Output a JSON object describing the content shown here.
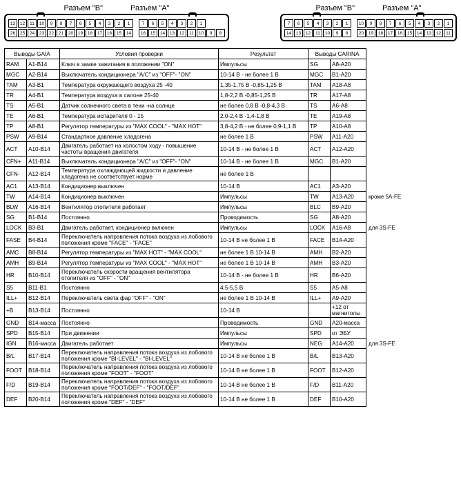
{
  "connectors": {
    "left": {
      "label_b": "Разъем \"В\"",
      "label_a": "Разъем \"А\""
    },
    "right": {
      "label_b": "Разъем \"В\"",
      "label_a": "Разъем \"А\""
    }
  },
  "headers": {
    "gaia": "Выводы GAIA",
    "cond": "Условия проверки",
    "result": "Результат",
    "carina": "Выводы CARINA"
  },
  "rows": [
    {
      "n": "RAM",
      "p": "A1-B14",
      "c": "Ключ в замке зажигания в положении \"ON\"",
      "r": "Импульсы",
      "n2": "SG",
      "p2": "A8-A20",
      "note": ""
    },
    {
      "n": "MGC",
      "p": "A2-B14",
      "c": "Выключатель кондиционера \"А/С\" из \"OFF\"- \"ON\"",
      "r": "10-14 В - не более 1 В",
      "n2": "MGC",
      "p2": "B1-A20",
      "note": ""
    },
    {
      "n": "TAM",
      "p": "A3-B1",
      "c": "Температура окружающего воздуха 25 -40",
      "r": "1,35-1,75 В -0,85-1,25 В",
      "n2": "TAM",
      "p2": "A18-A8",
      "note": ""
    },
    {
      "n": "TR",
      "p": "A4-B1",
      "c": "Температура воздуха в салоне 25-40",
      "r": "1,8-2,2 В -0,85-1,25 В",
      "n2": "TR",
      "p2": "A17-A8",
      "note": ""
    },
    {
      "n": "TS",
      "p": "A5-B1",
      "c": "Датчик солнечного света в тени -на солнце",
      "r": "не более 0,8 В -0,8-4,3 В",
      "n2": "TS",
      "p2": "A6-A8",
      "note": ""
    },
    {
      "n": "TE",
      "p": "A6-B1",
      "c": "Температура испарителя 0 - 15",
      "r": "2,0-2,4 В -1,4-1,8 В",
      "n2": "TE",
      "p2": "A19-A8",
      "note": ""
    },
    {
      "n": "TP",
      "p": "A8-B1",
      "c": "Регулятор температуры из \"MAX COOL\" - \"MAX HOT\"",
      "r": "3,8-4,2 В - не более 0,9-1,1 В",
      "n2": "TP",
      "p2": "A10-A8",
      "note": ""
    },
    {
      "n": "PSW",
      "p": "A9-B14",
      "c": "Стандартное давление хладогена",
      "r": "не более 1 В",
      "n2": "PSW",
      "p2": "A11-A20",
      "note": ""
    },
    {
      "n": "ACT",
      "p": "A10-B14",
      "c": "Двигатель работает на холостом ходу - повышение частоты вращения двигателя",
      "r": "10-14 В - не более 1 В",
      "n2": "ACT",
      "p2": "A12-A20",
      "note": ""
    },
    {
      "n": "CFN+",
      "p": "A11-B14",
      "c": "Выключатель кондиционера \"А/С\" из \"OFF\"- \"ON\"",
      "r": "10-14 В - не более 1 В",
      "n2": "MGC",
      "p2": "B1-A20",
      "note": ""
    },
    {
      "n": "CFN-",
      "p": "A12-B14",
      "c": "Температура охлаждающей жидкости и давление хладогена не соответствует норме",
      "r": "не более 1 В",
      "n2": "",
      "p2": "",
      "note": ""
    },
    {
      "n": "AC1",
      "p": "A13-B14",
      "c": "Кондиционер выключен",
      "r": "10-14 В",
      "n2": "AC1",
      "p2": "A3-A20",
      "note": ""
    },
    {
      "n": "TW",
      "p": "A14-B14",
      "c": "Кондиционер выключен",
      "r": "Импульсы",
      "n2": "TW",
      "p2": "A13-A20",
      "note": "кроме 5A-FE"
    },
    {
      "n": "BLW",
      "p": "A16-B14",
      "c": "Вентилятор отопителя работает",
      "r": "Импульсы",
      "n2": "BLC",
      "p2": "B9-A20",
      "note": ""
    },
    {
      "n": "SG",
      "p": "B1-B14",
      "c": "Постоянно",
      "r": "Проводимость",
      "n2": "SG",
      "p2": "A8-A20",
      "note": ""
    },
    {
      "n": "LOCK",
      "p": "B3-B1",
      "c": "Двигатель работает, кондиционер включен",
      "r": "Импульсы",
      "n2": "LOCK",
      "p2": "A16-A8",
      "note": "для 3S-FE"
    },
    {
      "n": "FASE",
      "p": "B4-B14",
      "c": "Переключатель направления потока воздуха из лобового положения кроме \"FACE\" - \"FACE\"",
      "r": "10-14 В не более 1 В",
      "n2": "FACE",
      "p2": "B14-A20",
      "note": ""
    },
    {
      "n": "AMC",
      "p": "B8-B14",
      "c": "Регулятор температуры из \"MAX HOT\" - \"MAX COOL\"",
      "r": "не более 1 В 10-14 В",
      "n2": "AMH",
      "p2": "B2-A20",
      "note": ""
    },
    {
      "n": "AMH",
      "p": "B9-B14",
      "c": "Регулятор температуры из \"MAX COOL\" - \"MAX HOT\"",
      "r": "не более 1 В 10-14 В",
      "n2": "AMH",
      "p2": "B3-A20",
      "note": ""
    },
    {
      "n": "HR",
      "p": "B10-B14",
      "c": "Переключатель скорости вращения вентилятора отопителя из \"OFF\" - \"ON\"",
      "r": "10-14 В - не более 1 В",
      "n2": "HR",
      "p2": "B6-A20",
      "note": ""
    },
    {
      "n": "S5",
      "p": "B11-B1",
      "c": "Постоянно",
      "r": "4,5-5,5 В",
      "n2": "S5",
      "p2": "A5-A8",
      "note": ""
    },
    {
      "n": "ILL+",
      "p": "B12-B14",
      "c": "Переключатель света фар \"OFF\" - \"ON\"",
      "r": "не более 1 В 10-14 В",
      "n2": "ILL+",
      "p2": "A9-A20",
      "note": ""
    },
    {
      "n": "+B",
      "p": "B13-B14",
      "c": "Постоянно",
      "r": "10-14 В",
      "n2": "",
      "p2": "+12 от магнитолы",
      "note": ""
    },
    {
      "n": "GND",
      "p": "B14-масса",
      "c": "Постоянно",
      "r": "Проводимость",
      "n2": "GND",
      "p2": "A20-масса",
      "note": ""
    },
    {
      "n": "SPD",
      "p": "B15-B14",
      "c": "При движении",
      "r": "Импульсы",
      "n2": "SPD",
      "p2": "от ЭБУ",
      "note": ""
    },
    {
      "n": "IGN",
      "p": "B16-масса",
      "c": "Двигатель работает",
      "r": "Импульсы",
      "n2": "NEG",
      "p2": "A14-A20",
      "note": "для 3S-FE"
    },
    {
      "n": "B/L",
      "p": "B17-B14",
      "c": "Переключатель направления потока воздуха из лобового положения кроме \"BI-LEVEL\" - \"BI-LEVEL\"",
      "r": "10-14 В не более 1 В",
      "n2": "B/L",
      "p2": "B13-A20",
      "note": ""
    },
    {
      "n": "FOOT",
      "p": "B18-B14",
      "c": "Переключатель направления потока воздуха из лобового положения кроме \"FOOT\" - \"FOOT\"",
      "r": "10-14 В не более 1 В",
      "n2": "FOOT",
      "p2": "B12-A20",
      "note": ""
    },
    {
      "n": "F/D",
      "p": "B19-B14",
      "c": "Переключатель направления потока воздуха из лобового положения кроме \"FOOT/DEF\" - \"FOOT/DEF\"",
      "r": "10-14 В не более 1 В",
      "n2": "F/D",
      "p2": "B11-A20",
      "note": ""
    },
    {
      "n": "DEF",
      "p": "B20-B14",
      "c": "Переключатель направления потока воздуха из лобового положения кроме \"DEF\" - \"DEF\"",
      "r": "10-14 В не более 1 В",
      "n2": "DEF",
      "p2": "B10-A20",
      "note": ""
    }
  ]
}
